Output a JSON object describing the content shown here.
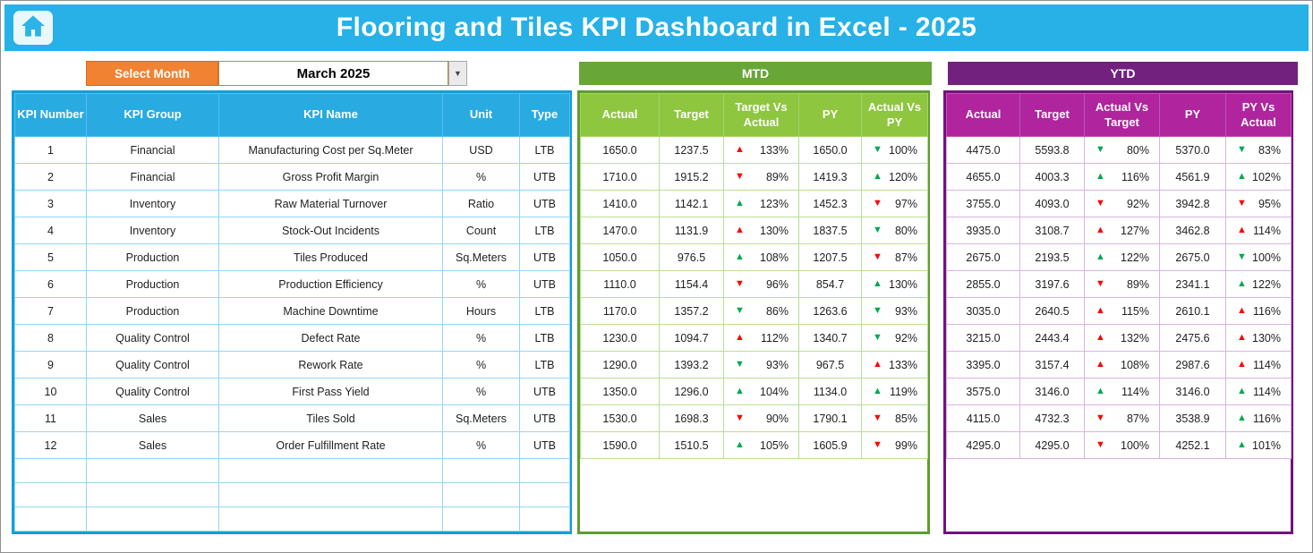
{
  "header": {
    "title": "Flooring and Tiles KPI Dashboard in Excel - 2025"
  },
  "controls": {
    "select_month_label": "Select Month",
    "selected_month": "March 2025",
    "dropdown_icon": "▼"
  },
  "sections": {
    "mtd_label": "MTD",
    "ytd_label": "YTD"
  },
  "colors": {
    "title_bar_cyan": "#27B1E6",
    "table_header_blue": "#29ABE2",
    "select_month_orange": "#F08232",
    "mtd_bar_green": "#68A637",
    "mtd_header_green": "#8EC63F",
    "ytd_bar_purple": "#72217E",
    "ytd_header_magenta": "#B0249E",
    "arrow_red": "#FE0000",
    "arrow_green": "#00A94F"
  },
  "table": {
    "info_headers": [
      "KPI Number",
      "KPI Group",
      "KPI Name",
      "Unit",
      "Type"
    ],
    "mtd_headers": [
      "Actual",
      "Target",
      "Target Vs Actual",
      "PY",
      "Actual Vs PY"
    ],
    "ytd_headers": [
      "Actual",
      "Target",
      "Actual Vs Target",
      "PY",
      "PY Vs Actual"
    ],
    "empty_row_count": 3,
    "rows": [
      {
        "num": "1",
        "group": "Financial",
        "name": "Manufacturing Cost per Sq.Meter",
        "unit": "USD",
        "type": "LTB",
        "mtd": {
          "actual": "1650.0",
          "target": "1237.5",
          "target_vs_actual": {
            "dir": "up",
            "color": "red",
            "value": "133%"
          },
          "py": "1650.0",
          "actual_vs_py": {
            "dir": "down",
            "color": "green",
            "value": "100%"
          }
        },
        "ytd": {
          "actual": "4475.0",
          "target": "5593.8",
          "actual_vs_target": {
            "dir": "down",
            "color": "green",
            "value": "80%"
          },
          "py": "5370.0",
          "py_vs_actual": {
            "dir": "down",
            "color": "green",
            "value": "83%"
          }
        }
      },
      {
        "num": "2",
        "group": "Financial",
        "name": "Gross Profit Margin",
        "unit": "%",
        "type": "UTB",
        "mtd": {
          "actual": "1710.0",
          "target": "1915.2",
          "target_vs_actual": {
            "dir": "down",
            "color": "red",
            "value": "89%"
          },
          "py": "1419.3",
          "actual_vs_py": {
            "dir": "up",
            "color": "green",
            "value": "120%"
          }
        },
        "ytd": {
          "actual": "4655.0",
          "target": "4003.3",
          "actual_vs_target": {
            "dir": "up",
            "color": "green",
            "value": "116%"
          },
          "py": "4561.9",
          "py_vs_actual": {
            "dir": "up",
            "color": "green",
            "value": "102%"
          }
        }
      },
      {
        "num": "3",
        "group": "Inventory",
        "name": "Raw Material Turnover",
        "unit": "Ratio",
        "type": "UTB",
        "mtd": {
          "actual": "1410.0",
          "target": "1142.1",
          "target_vs_actual": {
            "dir": "up",
            "color": "green",
            "value": "123%"
          },
          "py": "1452.3",
          "actual_vs_py": {
            "dir": "down",
            "color": "red",
            "value": "97%"
          }
        },
        "ytd": {
          "actual": "3755.0",
          "target": "4093.0",
          "actual_vs_target": {
            "dir": "down",
            "color": "red",
            "value": "92%"
          },
          "py": "3942.8",
          "py_vs_actual": {
            "dir": "down",
            "color": "red",
            "value": "95%"
          }
        }
      },
      {
        "num": "4",
        "group": "Inventory",
        "name": "Stock-Out Incidents",
        "unit": "Count",
        "type": "LTB",
        "mtd": {
          "actual": "1470.0",
          "target": "1131.9",
          "target_vs_actual": {
            "dir": "up",
            "color": "red",
            "value": "130%"
          },
          "py": "1837.5",
          "actual_vs_py": {
            "dir": "down",
            "color": "green",
            "value": "80%"
          }
        },
        "ytd": {
          "actual": "3935.0",
          "target": "3108.7",
          "actual_vs_target": {
            "dir": "up",
            "color": "red",
            "value": "127%"
          },
          "py": "3462.8",
          "py_vs_actual": {
            "dir": "up",
            "color": "red",
            "value": "114%"
          }
        }
      },
      {
        "num": "5",
        "group": "Production",
        "name": "Tiles Produced",
        "unit": "Sq.Meters",
        "type": "UTB",
        "mtd": {
          "actual": "1050.0",
          "target": "976.5",
          "target_vs_actual": {
            "dir": "up",
            "color": "green",
            "value": "108%"
          },
          "py": "1207.5",
          "actual_vs_py": {
            "dir": "down",
            "color": "red",
            "value": "87%"
          }
        },
        "ytd": {
          "actual": "2675.0",
          "target": "2193.5",
          "actual_vs_target": {
            "dir": "up",
            "color": "green",
            "value": "122%"
          },
          "py": "2675.0",
          "py_vs_actual": {
            "dir": "down",
            "color": "green",
            "value": "100%"
          }
        }
      },
      {
        "num": "6",
        "group": "Production",
        "name": "Production Efficiency",
        "unit": "%",
        "type": "UTB",
        "mtd": {
          "actual": "1110.0",
          "target": "1154.4",
          "target_vs_actual": {
            "dir": "down",
            "color": "red",
            "value": "96%"
          },
          "py": "854.7",
          "actual_vs_py": {
            "dir": "up",
            "color": "green",
            "value": "130%"
          }
        },
        "ytd": {
          "actual": "2855.0",
          "target": "3197.6",
          "actual_vs_target": {
            "dir": "down",
            "color": "red",
            "value": "89%"
          },
          "py": "2341.1",
          "py_vs_actual": {
            "dir": "up",
            "color": "green",
            "value": "122%"
          }
        }
      },
      {
        "num": "7",
        "group": "Production",
        "name": "Machine Downtime",
        "unit": "Hours",
        "type": "LTB",
        "mtd": {
          "actual": "1170.0",
          "target": "1357.2",
          "target_vs_actual": {
            "dir": "down",
            "color": "green",
            "value": "86%"
          },
          "py": "1263.6",
          "actual_vs_py": {
            "dir": "down",
            "color": "green",
            "value": "93%"
          }
        },
        "ytd": {
          "actual": "3035.0",
          "target": "2640.5",
          "actual_vs_target": {
            "dir": "up",
            "color": "red",
            "value": "115%"
          },
          "py": "2610.1",
          "py_vs_actual": {
            "dir": "up",
            "color": "red",
            "value": "116%"
          }
        }
      },
      {
        "num": "8",
        "group": "Quality Control",
        "name": "Defect Rate",
        "unit": "%",
        "type": "LTB",
        "mtd": {
          "actual": "1230.0",
          "target": "1094.7",
          "target_vs_actual": {
            "dir": "up",
            "color": "red",
            "value": "112%"
          },
          "py": "1340.7",
          "actual_vs_py": {
            "dir": "down",
            "color": "green",
            "value": "92%"
          }
        },
        "ytd": {
          "actual": "3215.0",
          "target": "2443.4",
          "actual_vs_target": {
            "dir": "up",
            "color": "red",
            "value": "132%"
          },
          "py": "2475.6",
          "py_vs_actual": {
            "dir": "up",
            "color": "red",
            "value": "130%"
          }
        }
      },
      {
        "num": "9",
        "group": "Quality Control",
        "name": "Rework Rate",
        "unit": "%",
        "type": "LTB",
        "mtd": {
          "actual": "1290.0",
          "target": "1393.2",
          "target_vs_actual": {
            "dir": "down",
            "color": "green",
            "value": "93%"
          },
          "py": "967.5",
          "actual_vs_py": {
            "dir": "up",
            "color": "red",
            "value": "133%"
          }
        },
        "ytd": {
          "actual": "3395.0",
          "target": "3157.4",
          "actual_vs_target": {
            "dir": "up",
            "color": "red",
            "value": "108%"
          },
          "py": "2987.6",
          "py_vs_actual": {
            "dir": "up",
            "color": "red",
            "value": "114%"
          }
        }
      },
      {
        "num": "10",
        "group": "Quality Control",
        "name": "First Pass Yield",
        "unit": "%",
        "type": "UTB",
        "mtd": {
          "actual": "1350.0",
          "target": "1296.0",
          "target_vs_actual": {
            "dir": "up",
            "color": "green",
            "value": "104%"
          },
          "py": "1134.0",
          "actual_vs_py": {
            "dir": "up",
            "color": "green",
            "value": "119%"
          }
        },
        "ytd": {
          "actual": "3575.0",
          "target": "3146.0",
          "actual_vs_target": {
            "dir": "up",
            "color": "green",
            "value": "114%"
          },
          "py": "3146.0",
          "py_vs_actual": {
            "dir": "up",
            "color": "green",
            "value": "114%"
          }
        }
      },
      {
        "num": "11",
        "group": "Sales",
        "name": "Tiles Sold",
        "unit": "Sq.Meters",
        "type": "UTB",
        "mtd": {
          "actual": "1530.0",
          "target": "1698.3",
          "target_vs_actual": {
            "dir": "down",
            "color": "red",
            "value": "90%"
          },
          "py": "1790.1",
          "actual_vs_py": {
            "dir": "down",
            "color": "red",
            "value": "85%"
          }
        },
        "ytd": {
          "actual": "4115.0",
          "target": "4732.3",
          "actual_vs_target": {
            "dir": "down",
            "color": "red",
            "value": "87%"
          },
          "py": "3538.9",
          "py_vs_actual": {
            "dir": "up",
            "color": "green",
            "value": "116%"
          }
        }
      },
      {
        "num": "12",
        "group": "Sales",
        "name": "Order Fulfillment Rate",
        "unit": "%",
        "type": "UTB",
        "mtd": {
          "actual": "1590.0",
          "target": "1510.5",
          "target_vs_actual": {
            "dir": "up",
            "color": "green",
            "value": "105%"
          },
          "py": "1605.9",
          "actual_vs_py": {
            "dir": "down",
            "color": "red",
            "value": "99%"
          }
        },
        "ytd": {
          "actual": "4295.0",
          "target": "4295.0",
          "actual_vs_target": {
            "dir": "down",
            "color": "red",
            "value": "100%"
          },
          "py": "4252.1",
          "py_vs_actual": {
            "dir": "up",
            "color": "green",
            "value": "101%"
          }
        }
      }
    ]
  }
}
